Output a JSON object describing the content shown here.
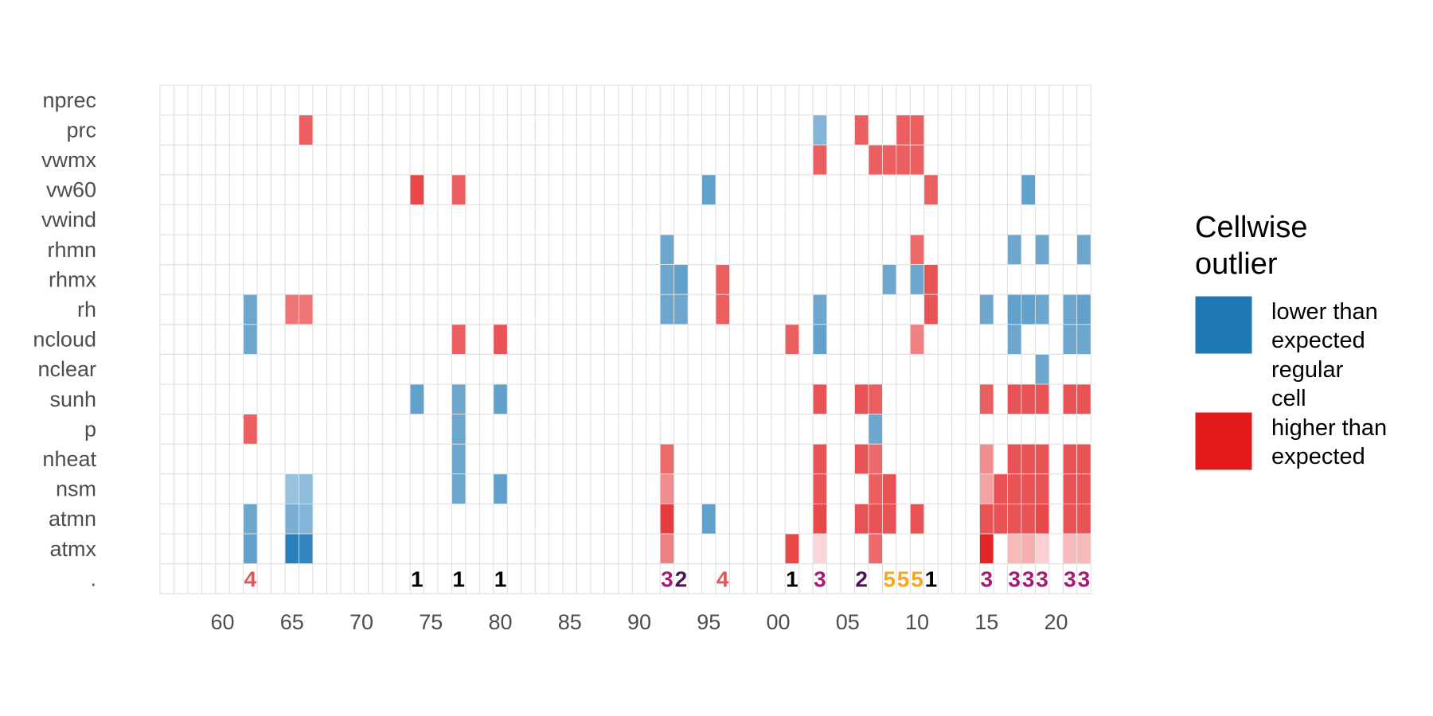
{
  "chart_data": {
    "type": "heatmap",
    "title": "",
    "xlabel": "",
    "ylabel": "",
    "x_years": [
      1956,
      1957,
      1958,
      1959,
      1960,
      1961,
      1962,
      1963,
      1964,
      1965,
      1966,
      1967,
      1968,
      1969,
      1970,
      1971,
      1972,
      1973,
      1974,
      1975,
      1976,
      1977,
      1978,
      1979,
      1980,
      1981,
      1982,
      1983,
      1984,
      1985,
      1986,
      1987,
      1988,
      1989,
      1990,
      1991,
      1992,
      1993,
      1994,
      1995,
      1996,
      1997,
      1998,
      1999,
      2000,
      2001,
      2002,
      2003,
      2004,
      2005,
      2006,
      2007,
      2008,
      2009,
      2010,
      2011,
      2012,
      2013,
      2014,
      2015,
      2016,
      2017,
      2018,
      2019,
      2020,
      2021,
      2022
    ],
    "x_tick_years": [
      1960,
      1965,
      1970,
      1975,
      1980,
      1985,
      1990,
      1995,
      2000,
      2005,
      2010,
      2015,
      2020
    ],
    "x_tick_labels": [
      "60",
      "65",
      "70",
      "75",
      "80",
      "85",
      "90",
      "95",
      "00",
      "05",
      "10",
      "15",
      "20"
    ],
    "variables": [
      "nprec",
      "prc",
      "vwmx",
      "vw60",
      "vwind",
      "rhmn",
      "rhmx",
      "rh",
      "ncloud",
      "nclear",
      "sunh",
      "p",
      "nheat",
      "nsm",
      "atmn",
      "atmx"
    ],
    "row_summary_label": ".",
    "cells": [
      {
        "var": "prc",
        "year": 1966,
        "value": 0.7
      },
      {
        "var": "prc",
        "year": 2003,
        "value": -0.55
      },
      {
        "var": "prc",
        "year": 2006,
        "value": 0.7
      },
      {
        "var": "prc",
        "year": 2009,
        "value": 0.7
      },
      {
        "var": "prc",
        "year": 2010,
        "value": 0.7
      },
      {
        "var": "vwmx",
        "year": 2003,
        "value": 0.7
      },
      {
        "var": "vwmx",
        "year": 2007,
        "value": 0.7
      },
      {
        "var": "vwmx",
        "year": 2008,
        "value": 0.7
      },
      {
        "var": "vwmx",
        "year": 2009,
        "value": 0.7
      },
      {
        "var": "vwmx",
        "year": 2010,
        "value": 0.7
      },
      {
        "var": "vw60",
        "year": 1974,
        "value": 0.8
      },
      {
        "var": "vw60",
        "year": 1977,
        "value": 0.7
      },
      {
        "var": "vw60",
        "year": 1995,
        "value": -0.7
      },
      {
        "var": "vw60",
        "year": 2011,
        "value": 0.7
      },
      {
        "var": "vw60",
        "year": 2018,
        "value": -0.7
      },
      {
        "var": "rhmn",
        "year": 1992,
        "value": -0.65
      },
      {
        "var": "rhmn",
        "year": 2010,
        "value": 0.65
      },
      {
        "var": "rhmn",
        "year": 2017,
        "value": -0.65
      },
      {
        "var": "rhmn",
        "year": 2019,
        "value": -0.65
      },
      {
        "var": "rhmn",
        "year": 2022,
        "value": -0.65
      },
      {
        "var": "rhmx",
        "year": 1992,
        "value": -0.65
      },
      {
        "var": "rhmx",
        "year": 1993,
        "value": -0.7
      },
      {
        "var": "rhmx",
        "year": 1996,
        "value": 0.7
      },
      {
        "var": "rhmx",
        "year": 2008,
        "value": -0.65
      },
      {
        "var": "rhmx",
        "year": 2010,
        "value": -0.65
      },
      {
        "var": "rhmx",
        "year": 2011,
        "value": 0.75
      },
      {
        "var": "rh",
        "year": 1962,
        "value": -0.65
      },
      {
        "var": "rh",
        "year": 1965,
        "value": 0.6
      },
      {
        "var": "rh",
        "year": 1966,
        "value": 0.6
      },
      {
        "var": "rh",
        "year": 1992,
        "value": -0.65
      },
      {
        "var": "rh",
        "year": 1993,
        "value": -0.65
      },
      {
        "var": "rh",
        "year": 1996,
        "value": 0.7
      },
      {
        "var": "rh",
        "year": 2003,
        "value": -0.65
      },
      {
        "var": "rh",
        "year": 2011,
        "value": 0.75
      },
      {
        "var": "rh",
        "year": 2015,
        "value": -0.65
      },
      {
        "var": "rh",
        "year": 2017,
        "value": -0.7
      },
      {
        "var": "rh",
        "year": 2018,
        "value": -0.7
      },
      {
        "var": "rh",
        "year": 2019,
        "value": -0.65
      },
      {
        "var": "rh",
        "year": 2021,
        "value": -0.65
      },
      {
        "var": "rh",
        "year": 2022,
        "value": -0.7
      },
      {
        "var": "ncloud",
        "year": 1962,
        "value": -0.65
      },
      {
        "var": "ncloud",
        "year": 1977,
        "value": 0.7
      },
      {
        "var": "ncloud",
        "year": 1980,
        "value": 0.75
      },
      {
        "var": "ncloud",
        "year": 2001,
        "value": 0.7
      },
      {
        "var": "ncloud",
        "year": 2003,
        "value": -0.7
      },
      {
        "var": "ncloud",
        "year": 2010,
        "value": 0.55
      },
      {
        "var": "ncloud",
        "year": 2017,
        "value": -0.65
      },
      {
        "var": "ncloud",
        "year": 2021,
        "value": -0.65
      },
      {
        "var": "ncloud",
        "year": 2022,
        "value": -0.65
      },
      {
        "var": "nclear",
        "year": 2019,
        "value": -0.65
      },
      {
        "var": "sunh",
        "year": 1974,
        "value": -0.7
      },
      {
        "var": "sunh",
        "year": 1977,
        "value": -0.65
      },
      {
        "var": "sunh",
        "year": 1980,
        "value": -0.7
      },
      {
        "var": "sunh",
        "year": 2003,
        "value": 0.75
      },
      {
        "var": "sunh",
        "year": 2006,
        "value": 0.75
      },
      {
        "var": "sunh",
        "year": 2007,
        "value": 0.7
      },
      {
        "var": "sunh",
        "year": 2015,
        "value": 0.7
      },
      {
        "var": "sunh",
        "year": 2017,
        "value": 0.75
      },
      {
        "var": "sunh",
        "year": 2018,
        "value": 0.75
      },
      {
        "var": "sunh",
        "year": 2019,
        "value": 0.75
      },
      {
        "var": "sunh",
        "year": 2021,
        "value": 0.75
      },
      {
        "var": "sunh",
        "year": 2022,
        "value": 0.75
      },
      {
        "var": "p",
        "year": 1962,
        "value": 0.7
      },
      {
        "var": "p",
        "year": 1977,
        "value": -0.65
      },
      {
        "var": "p",
        "year": 2007,
        "value": -0.65
      },
      {
        "var": "nheat",
        "year": 1977,
        "value": -0.65
      },
      {
        "var": "nheat",
        "year": 1992,
        "value": 0.65
      },
      {
        "var": "nheat",
        "year": 2003,
        "value": 0.75
      },
      {
        "var": "nheat",
        "year": 2006,
        "value": 0.75
      },
      {
        "var": "nheat",
        "year": 2007,
        "value": 0.65
      },
      {
        "var": "nheat",
        "year": 2015,
        "value": 0.5
      },
      {
        "var": "nheat",
        "year": 2017,
        "value": 0.75
      },
      {
        "var": "nheat",
        "year": 2018,
        "value": 0.75
      },
      {
        "var": "nheat",
        "year": 2019,
        "value": 0.75
      },
      {
        "var": "nheat",
        "year": 2021,
        "value": 0.75
      },
      {
        "var": "nheat",
        "year": 2022,
        "value": 0.75
      },
      {
        "var": "nsm",
        "year": 1965,
        "value": -0.45
      },
      {
        "var": "nsm",
        "year": 1966,
        "value": -0.5
      },
      {
        "var": "nsm",
        "year": 1977,
        "value": -0.65
      },
      {
        "var": "nsm",
        "year": 1980,
        "value": -0.7
      },
      {
        "var": "nsm",
        "year": 1992,
        "value": 0.5
      },
      {
        "var": "nsm",
        "year": 2003,
        "value": 0.75
      },
      {
        "var": "nsm",
        "year": 2007,
        "value": 0.7
      },
      {
        "var": "nsm",
        "year": 2008,
        "value": 0.75
      },
      {
        "var": "nsm",
        "year": 2015,
        "value": 0.4
      },
      {
        "var": "nsm",
        "year": 2016,
        "value": 0.75
      },
      {
        "var": "nsm",
        "year": 2017,
        "value": 0.75
      },
      {
        "var": "nsm",
        "year": 2018,
        "value": 0.75
      },
      {
        "var": "nsm",
        "year": 2019,
        "value": 0.75
      },
      {
        "var": "nsm",
        "year": 2021,
        "value": 0.75
      },
      {
        "var": "nsm",
        "year": 2022,
        "value": 0.75
      },
      {
        "var": "atmn",
        "year": 1962,
        "value": -0.65
      },
      {
        "var": "atmn",
        "year": 1965,
        "value": -0.6
      },
      {
        "var": "atmn",
        "year": 1966,
        "value": -0.55
      },
      {
        "var": "atmn",
        "year": 1992,
        "value": 0.85
      },
      {
        "var": "atmn",
        "year": 1995,
        "value": -0.7
      },
      {
        "var": "atmn",
        "year": 2003,
        "value": 0.8
      },
      {
        "var": "atmn",
        "year": 2006,
        "value": 0.75
      },
      {
        "var": "atmn",
        "year": 2007,
        "value": 0.75
      },
      {
        "var": "atmn",
        "year": 2008,
        "value": 0.75
      },
      {
        "var": "atmn",
        "year": 2010,
        "value": 0.75
      },
      {
        "var": "atmn",
        "year": 2015,
        "value": 0.75
      },
      {
        "var": "atmn",
        "year": 2016,
        "value": 0.75
      },
      {
        "var": "atmn",
        "year": 2017,
        "value": 0.75
      },
      {
        "var": "atmn",
        "year": 2018,
        "value": 0.75
      },
      {
        "var": "atmn",
        "year": 2019,
        "value": 0.8
      },
      {
        "var": "atmn",
        "year": 2021,
        "value": 0.75
      },
      {
        "var": "atmn",
        "year": 2022,
        "value": 0.75
      },
      {
        "var": "atmx",
        "year": 1962,
        "value": -0.7
      },
      {
        "var": "atmx",
        "year": 1965,
        "value": -0.95
      },
      {
        "var": "atmx",
        "year": 1966,
        "value": -0.9
      },
      {
        "var": "atmx",
        "year": 1992,
        "value": 0.55
      },
      {
        "var": "atmx",
        "year": 2001,
        "value": 0.8
      },
      {
        "var": "atmx",
        "year": 2003,
        "value": 0.18
      },
      {
        "var": "atmx",
        "year": 2007,
        "value": 0.65
      },
      {
        "var": "atmx",
        "year": 2015,
        "value": 0.95
      },
      {
        "var": "atmx",
        "year": 2017,
        "value": 0.3
      },
      {
        "var": "atmx",
        "year": 2018,
        "value": 0.35
      },
      {
        "var": "atmx",
        "year": 2019,
        "value": 0.2
      },
      {
        "var": "atmx",
        "year": 2021,
        "value": 0.3
      },
      {
        "var": "atmx",
        "year": 2022,
        "value": 0.3
      }
    ],
    "row_labels": [
      {
        "year": 1962,
        "text": "4",
        "color": "#e15759"
      },
      {
        "year": 1974,
        "text": "1",
        "color": "#000000"
      },
      {
        "year": 1977,
        "text": "1",
        "color": "#000000"
      },
      {
        "year": 1980,
        "text": "1",
        "color": "#000000"
      },
      {
        "year": 1992,
        "text": "3",
        "color": "#9e1f73"
      },
      {
        "year": 1993,
        "text": "2",
        "color": "#4a1456"
      },
      {
        "year": 1996,
        "text": "4",
        "color": "#e15759"
      },
      {
        "year": 2001,
        "text": "1",
        "color": "#000000"
      },
      {
        "year": 2003,
        "text": "3",
        "color": "#9e1f73"
      },
      {
        "year": 2006,
        "text": "2",
        "color": "#4a1456"
      },
      {
        "year": 2008,
        "text": "5",
        "color": "#f5a623"
      },
      {
        "year": 2009,
        "text": "5",
        "color": "#f5a623"
      },
      {
        "year": 2010,
        "text": "5",
        "color": "#f5a623"
      },
      {
        "year": 2011,
        "text": "1",
        "color": "#000000"
      },
      {
        "year": 2015,
        "text": "3",
        "color": "#9e1f73"
      },
      {
        "year": 2017,
        "text": "3",
        "color": "#9e1f73"
      },
      {
        "year": 2018,
        "text": "3",
        "color": "#9e1f73"
      },
      {
        "year": 2019,
        "text": "3",
        "color": "#9e1f73"
      },
      {
        "year": 2021,
        "text": "3",
        "color": "#9e1f73"
      },
      {
        "year": 2022,
        "text": "3",
        "color": "#9e1f73"
      }
    ],
    "colors": {
      "low": "#1f78b4",
      "mid": "#ffffff",
      "high": "#e31a1c",
      "grid": "#dcdcdc"
    },
    "legend": {
      "title_lines": [
        "Cellwise",
        "outlier"
      ],
      "placement": "right",
      "items": [
        {
          "lines": [
            "lower than",
            "expected"
          ],
          "color": "#1f78b4"
        },
        {
          "lines": [
            "regular",
            "cell"
          ],
          "color": "#ffffff"
        },
        {
          "lines": [
            "higher than",
            "expected"
          ],
          "color": "#e31a1c"
        }
      ]
    }
  }
}
